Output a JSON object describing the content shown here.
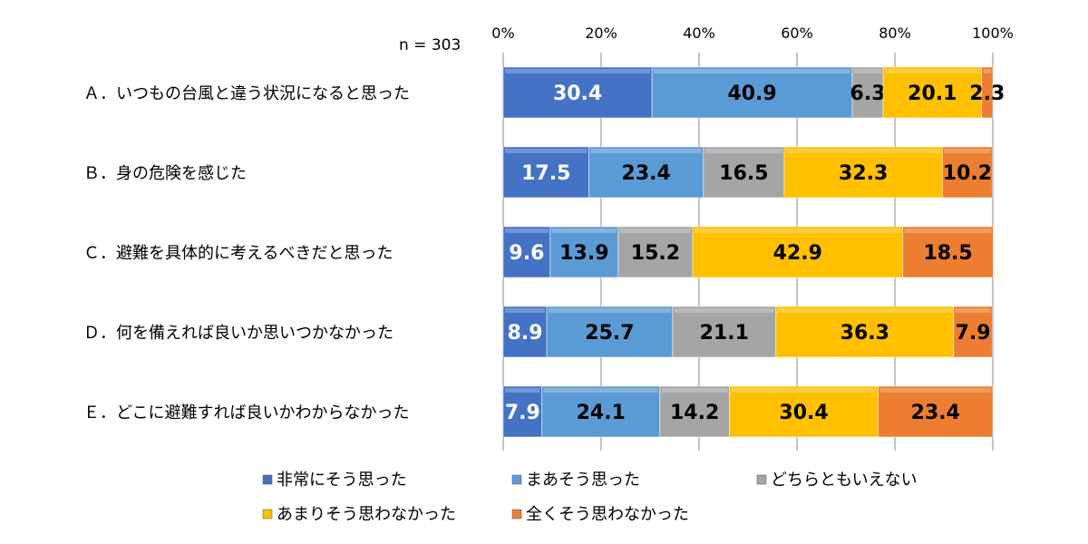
{
  "chart_data": {
    "type": "bar",
    "orientation": "horizontal",
    "stacked": true,
    "note": "n = 303",
    "xlim": [
      0,
      100
    ],
    "xticks": [
      "0%",
      "20%",
      "40%",
      "60%",
      "80%",
      "100%"
    ],
    "grid": true,
    "legend_position": "bottom",
    "categories": [
      "Ａ．いつもの台風と違う状況になると思った",
      "Ｂ．身の危険を感じた",
      "Ｃ．避難を具体的に考えるべきだと思った",
      "Ｄ．何を備えれば良いか思いつかなかった",
      "Ｅ．どこに避難すれば良いかわからなかった"
    ],
    "series": [
      {
        "name": "非常にそう思った",
        "color": "#4472C4",
        "label_color": "#ffffff",
        "values": [
          30.4,
          17.5,
          9.6,
          8.9,
          7.9
        ]
      },
      {
        "name": "まあそう思った",
        "color": "#5B9BD5",
        "label_color": "#000000",
        "values": [
          40.9,
          23.4,
          13.9,
          25.7,
          24.1
        ]
      },
      {
        "name": "どちらともいえない",
        "color": "#A5A5A5",
        "label_color": "#000000",
        "values": [
          6.3,
          16.5,
          15.2,
          21.1,
          14.2
        ]
      },
      {
        "name": "あまりそう思わなかった",
        "color": "#FFC000",
        "label_color": "#000000",
        "values": [
          20.1,
          32.3,
          42.9,
          36.3,
          30.4
        ]
      },
      {
        "name": "全くそう思わなかった",
        "color": "#ED7D31",
        "label_color": "#000000",
        "values": [
          2.3,
          10.2,
          18.5,
          7.9,
          23.4
        ]
      }
    ]
  }
}
